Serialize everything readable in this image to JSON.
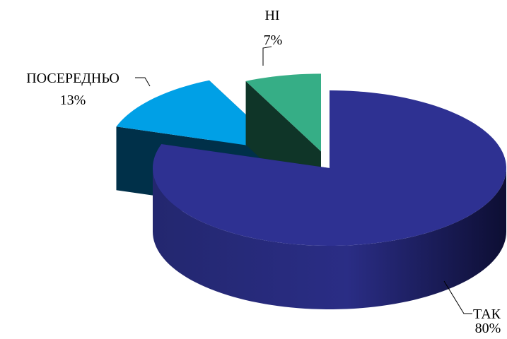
{
  "chart_data": {
    "type": "pie",
    "style": "3d-exploded",
    "legend": "none",
    "slices": [
      {
        "category": "ТАК",
        "value": 80,
        "label": "80%",
        "color": "#2E3192"
      },
      {
        "category": "ПОСЕРЕДНЬО",
        "value": 13,
        "label": "13%",
        "color": "#00A0E6"
      },
      {
        "category": "НІ",
        "value": 7,
        "label": "7%",
        "color": "#36AE86"
      }
    ]
  }
}
